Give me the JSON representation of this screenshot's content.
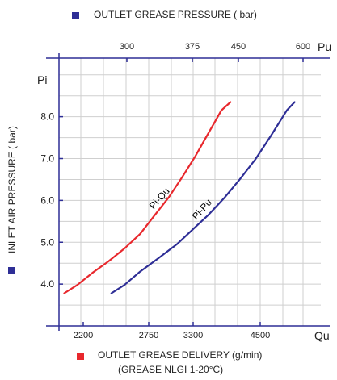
{
  "colors": {
    "outlet_pressure": "#2e2e96",
    "delivery": "#e8282d",
    "grid": "#cfcfcf",
    "axis": "#2e2e96"
  },
  "legend": {
    "top": "OUTLET GREASE PRESSURE ( bar)",
    "bottom_line1": "OUTLET GREASE DELIVERY (g/min)",
    "bottom_line2": "(GREASE NLGI 1-20°C)"
  },
  "chart_data": {
    "type": "line",
    "ylabel": "INLET AIR PRESSURE ( bar)",
    "y_axis_name": "Pi",
    "y_ticks": [
      "8.0",
      "7.0",
      "6.0",
      "5.0",
      "4.0"
    ],
    "ylim": [
      3.0,
      9.4
    ],
    "x_bottom": {
      "name": "Qu",
      "ticks": [
        "2200",
        "2750",
        "3300",
        "4500"
      ]
    },
    "x_top": {
      "name": "Pu",
      "ticks": [
        "300",
        "375",
        "450",
        "600"
      ]
    },
    "grid": true,
    "series": [
      {
        "name": "Pi-Qu",
        "color": "#e8282d",
        "points": [
          [
            0.02,
            3.78
          ],
          [
            0.07,
            3.98
          ],
          [
            0.13,
            4.28
          ],
          [
            0.19,
            4.55
          ],
          [
            0.25,
            4.85
          ],
          [
            0.31,
            5.2
          ],
          [
            0.36,
            5.6
          ],
          [
            0.42,
            6.08
          ],
          [
            0.47,
            6.55
          ],
          [
            0.52,
            7.05
          ],
          [
            0.57,
            7.6
          ],
          [
            0.62,
            8.15
          ],
          [
            0.655,
            8.35
          ]
        ]
      },
      {
        "name": "Pi-Pu",
        "color": "#2e2e96",
        "points": [
          [
            0.2,
            3.78
          ],
          [
            0.25,
            3.98
          ],
          [
            0.31,
            4.3
          ],
          [
            0.38,
            4.62
          ],
          [
            0.45,
            4.95
          ],
          [
            0.51,
            5.3
          ],
          [
            0.57,
            5.65
          ],
          [
            0.63,
            6.05
          ],
          [
            0.69,
            6.5
          ],
          [
            0.75,
            6.98
          ],
          [
            0.81,
            7.55
          ],
          [
            0.87,
            8.15
          ],
          [
            0.9,
            8.35
          ]
        ]
      }
    ]
  }
}
